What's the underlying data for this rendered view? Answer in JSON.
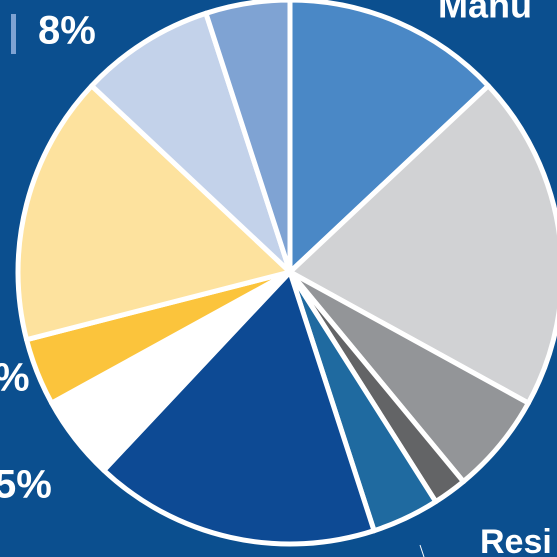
{
  "chart_data": {
    "type": "pie",
    "values": [
      13,
      20,
      6,
      2,
      4,
      17,
      5,
      4,
      16,
      8,
      5
    ],
    "colors": [
      "#4a88c6",
      "#d1d2d4",
      "#939598",
      "#636466",
      "#1f6aa0",
      "#0d4a94",
      "#ffffff",
      "#fbc43c",
      "#fde29e",
      "#c3d2ea",
      "#7fa3d3"
    ],
    "annotations": [
      "8%",
      "Manu",
      "%",
      "5%",
      "Resi"
    ]
  }
}
